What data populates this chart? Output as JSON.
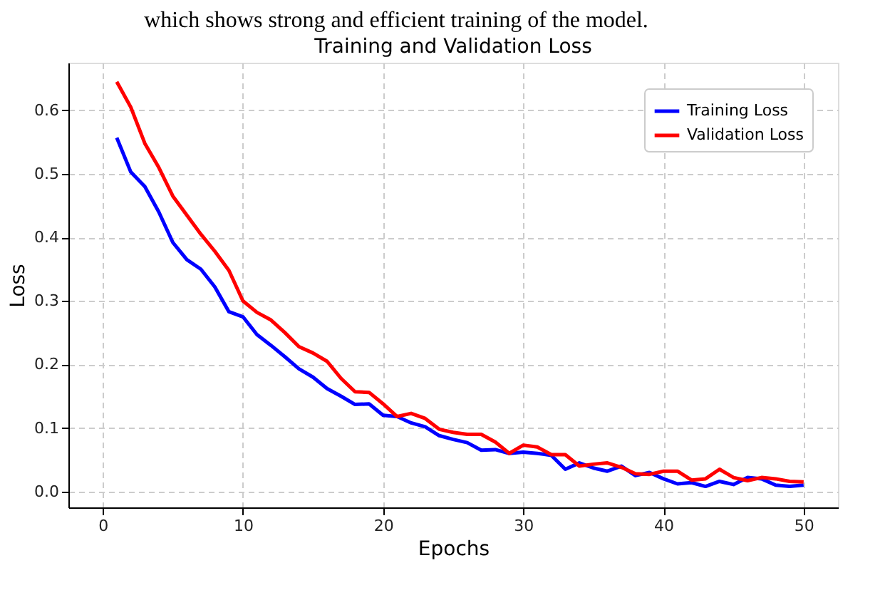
{
  "chart_data": {
    "type": "line",
    "title": "Training and Validation Loss",
    "xlabel": "Epochs",
    "ylabel": "Loss",
    "annotations": [
      "which shows strong and efficient training of the model."
    ],
    "x": [
      1,
      2,
      3,
      4,
      5,
      6,
      7,
      8,
      9,
      10,
      11,
      12,
      13,
      14,
      15,
      16,
      17,
      18,
      19,
      20,
      21,
      22,
      23,
      24,
      25,
      26,
      27,
      28,
      29,
      30,
      31,
      32,
      33,
      34,
      35,
      36,
      37,
      38,
      39,
      40,
      41,
      42,
      43,
      44,
      45,
      46,
      47,
      48,
      49,
      50
    ],
    "series": [
      {
        "name": "Training Loss",
        "color": "#0000ff",
        "values": [
          0.557,
          0.503,
          0.48,
          0.44,
          0.392,
          0.365,
          0.35,
          0.322,
          0.283,
          0.275,
          0.247,
          0.23,
          0.212,
          0.193,
          0.18,
          0.162,
          0.15,
          0.137,
          0.138,
          0.12,
          0.118,
          0.108,
          0.102,
          0.088,
          0.082,
          0.077,
          0.065,
          0.066,
          0.06,
          0.062,
          0.06,
          0.057,
          0.035,
          0.045,
          0.037,
          0.032,
          0.04,
          0.025,
          0.03,
          0.02,
          0.012,
          0.014,
          0.008,
          0.016,
          0.011,
          0.022,
          0.02,
          0.01,
          0.008,
          0.01
        ]
      },
      {
        "name": "Validation Loss",
        "color": "#ff0000",
        "values": [
          0.645,
          0.605,
          0.548,
          0.51,
          0.465,
          0.435,
          0.405,
          0.378,
          0.348,
          0.3,
          0.282,
          0.27,
          0.25,
          0.228,
          0.218,
          0.205,
          0.178,
          0.157,
          0.156,
          0.138,
          0.118,
          0.123,
          0.115,
          0.098,
          0.093,
          0.09,
          0.09,
          0.078,
          0.06,
          0.073,
          0.07,
          0.058,
          0.058,
          0.04,
          0.043,
          0.045,
          0.038,
          0.028,
          0.027,
          0.032,
          0.032,
          0.018,
          0.02,
          0.035,
          0.022,
          0.017,
          0.022,
          0.02,
          0.016,
          0.015
        ]
      }
    ],
    "xlim": [
      -2.45,
      52.45
    ],
    "xticks": [
      0,
      10,
      20,
      30,
      40,
      50
    ],
    "ylim": [
      -0.025,
      0.675
    ],
    "yticks": [
      {
        "value": 0,
        "label": "0.0"
      },
      {
        "value": 0.1,
        "label": "0.1"
      },
      {
        "value": 0.2,
        "label": "0.2"
      },
      {
        "value": 0.3,
        "label": "0.3"
      },
      {
        "value": 0.4,
        "label": "0.4"
      },
      {
        "value": 0.5,
        "label": "0.5"
      },
      {
        "value": 0.6,
        "label": "0.6"
      }
    ],
    "grid": true,
    "legend": "top right",
    "line_style": "solid",
    "marker": "none"
  }
}
